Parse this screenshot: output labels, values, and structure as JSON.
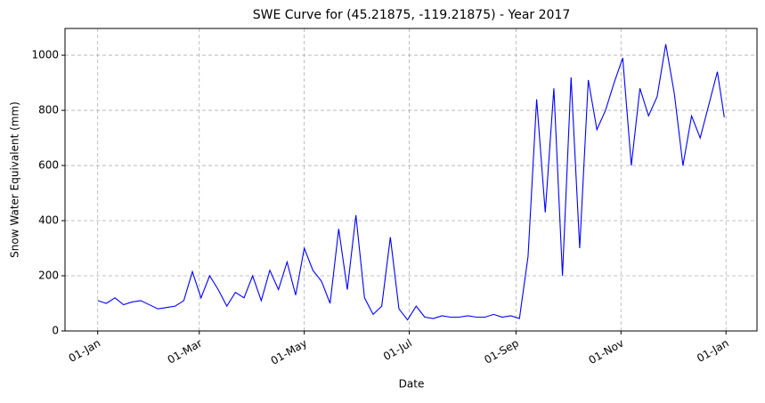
{
  "chart_data": {
    "type": "line",
    "title": "SWE Curve for (45.21875, -119.21875) - Year 2017",
    "xlabel": "Date",
    "ylabel": "Snow Water Equivalent (mm)",
    "x": [
      "2017-01-01",
      "2017-01-06",
      "2017-01-11",
      "2017-01-16",
      "2017-01-21",
      "2017-01-26",
      "2017-01-31",
      "2017-02-05",
      "2017-02-10",
      "2017-02-15",
      "2017-02-20",
      "2017-02-25",
      "2017-03-02",
      "2017-03-07",
      "2017-03-12",
      "2017-03-17",
      "2017-03-22",
      "2017-03-27",
      "2017-04-01",
      "2017-04-06",
      "2017-04-11",
      "2017-04-16",
      "2017-04-21",
      "2017-04-26",
      "2017-05-01",
      "2017-05-06",
      "2017-05-11",
      "2017-05-16",
      "2017-05-21",
      "2017-05-26",
      "2017-05-31",
      "2017-06-05",
      "2017-06-10",
      "2017-06-15",
      "2017-06-20",
      "2017-06-25",
      "2017-06-30",
      "2017-07-05",
      "2017-07-10",
      "2017-07-15",
      "2017-07-20",
      "2017-07-25",
      "2017-07-30",
      "2017-08-04",
      "2017-08-09",
      "2017-08-14",
      "2017-08-19",
      "2017-08-24",
      "2017-08-29",
      "2017-09-03",
      "2017-09-08",
      "2017-09-13",
      "2017-09-18",
      "2017-09-23",
      "2017-09-28",
      "2017-10-03",
      "2017-10-08",
      "2017-10-13",
      "2017-10-18",
      "2017-10-23",
      "2017-10-28",
      "2017-11-02",
      "2017-11-07",
      "2017-11-12",
      "2017-11-17",
      "2017-11-22",
      "2017-11-27",
      "2017-12-02",
      "2017-12-07",
      "2017-12-12",
      "2017-12-17",
      "2017-12-22",
      "2017-12-27",
      "2017-12-31"
    ],
    "series": [
      {
        "name": "SWE",
        "color": "#0000ff",
        "values": [
          110,
          100,
          120,
          95,
          105,
          110,
          95,
          80,
          85,
          90,
          110,
          215,
          120,
          200,
          150,
          90,
          140,
          120,
          200,
          110,
          220,
          150,
          250,
          130,
          300,
          220,
          180,
          100,
          370,
          150,
          420,
          120,
          60,
          90,
          340,
          80,
          40,
          90,
          50,
          45,
          55,
          50,
          50,
          55,
          50,
          50,
          60,
          50,
          55,
          45,
          270,
          840,
          430,
          880,
          200,
          920,
          300,
          910,
          730,
          800,
          900,
          990,
          600,
          880,
          780,
          850,
          1040,
          860,
          600,
          780,
          700,
          820,
          940,
          775
        ]
      }
    ],
    "xlim": [
      "2016-12-13",
      "2018-01-19"
    ],
    "xticks": [
      {
        "value": "2017-01-01",
        "label": "01-Jan"
      },
      {
        "value": "2017-03-01",
        "label": "01-Mar"
      },
      {
        "value": "2017-05-01",
        "label": "01-May"
      },
      {
        "value": "2017-07-01",
        "label": "01-Jul"
      },
      {
        "value": "2017-09-01",
        "label": "01-Sep"
      },
      {
        "value": "2017-11-01",
        "label": "01-Nov"
      },
      {
        "value": "2018-01-01",
        "label": "01-Jan"
      }
    ],
    "ylim": [
      0,
      1097
    ],
    "yticks": [
      0,
      200,
      400,
      600,
      800,
      1000
    ],
    "grid": true
  }
}
